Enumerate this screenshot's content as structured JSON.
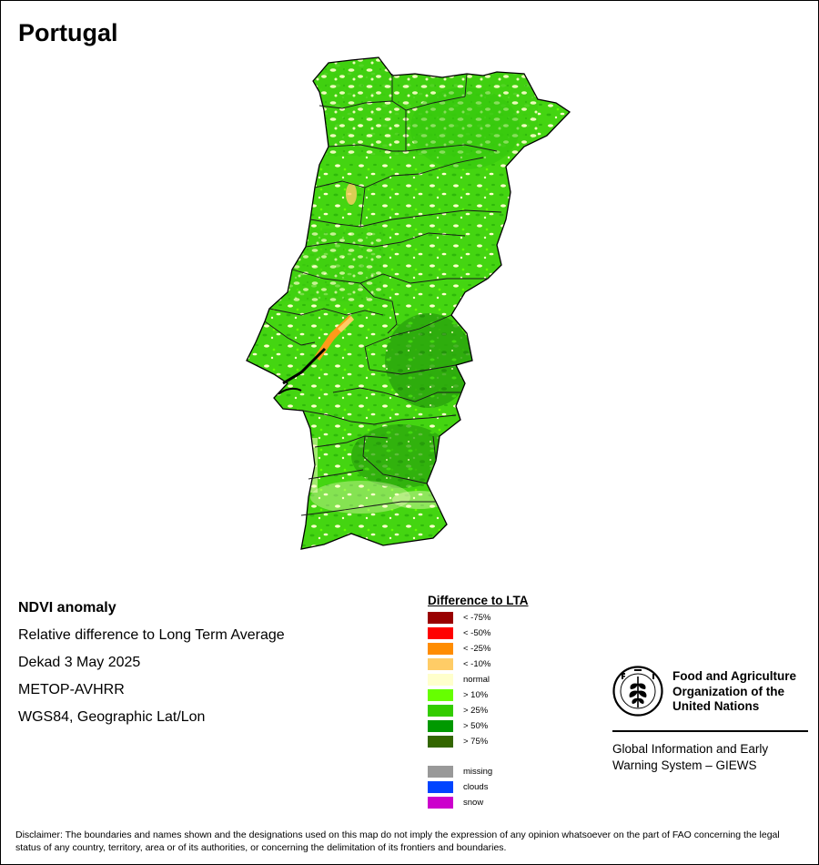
{
  "title": "Portugal",
  "info": {
    "product": "NDVI anomaly",
    "description": "Relative difference to Long Term Average",
    "period": "Dekad 3 May 2025",
    "sensor": "METOP-AVHRR",
    "projection": "WGS84, Geographic Lat/Lon"
  },
  "legend": {
    "title": "Difference to LTA",
    "items": [
      {
        "label": "< -75%",
        "color": "#990000"
      },
      {
        "label": "< -50%",
        "color": "#ff0000"
      },
      {
        "label": "< -25%",
        "color": "#ff8c00"
      },
      {
        "label": "< -10%",
        "color": "#ffcc66"
      },
      {
        "label": "normal",
        "color": "#ffffcc"
      },
      {
        "label": "> 10%",
        "color": "#66ff00"
      },
      {
        "label": "> 25%",
        "color": "#33cc00"
      },
      {
        "label": "> 50%",
        "color": "#009900"
      },
      {
        "label": "> 75%",
        "color": "#336600"
      }
    ],
    "extra": [
      {
        "label": "missing",
        "color": "#999999"
      },
      {
        "label": "clouds",
        "color": "#0044ff"
      },
      {
        "label": "snow",
        "color": "#cc00cc"
      }
    ]
  },
  "fao": {
    "name_line1": "Food and Agriculture",
    "name_line2": "Organization of the",
    "name_line3": "United Nations",
    "sub_line1": "Global Information and Early",
    "sub_line2": "Warning System – GIEWS"
  },
  "disclaimer": "Disclaimer: The boundaries and names shown and the designations used on this map do not imply the expression of any opinion whatsoever on the part of FAO concerning the legal status of any country, territory, area or of its authorities, or concerning the delimitation of its frontiers and boundaries."
}
